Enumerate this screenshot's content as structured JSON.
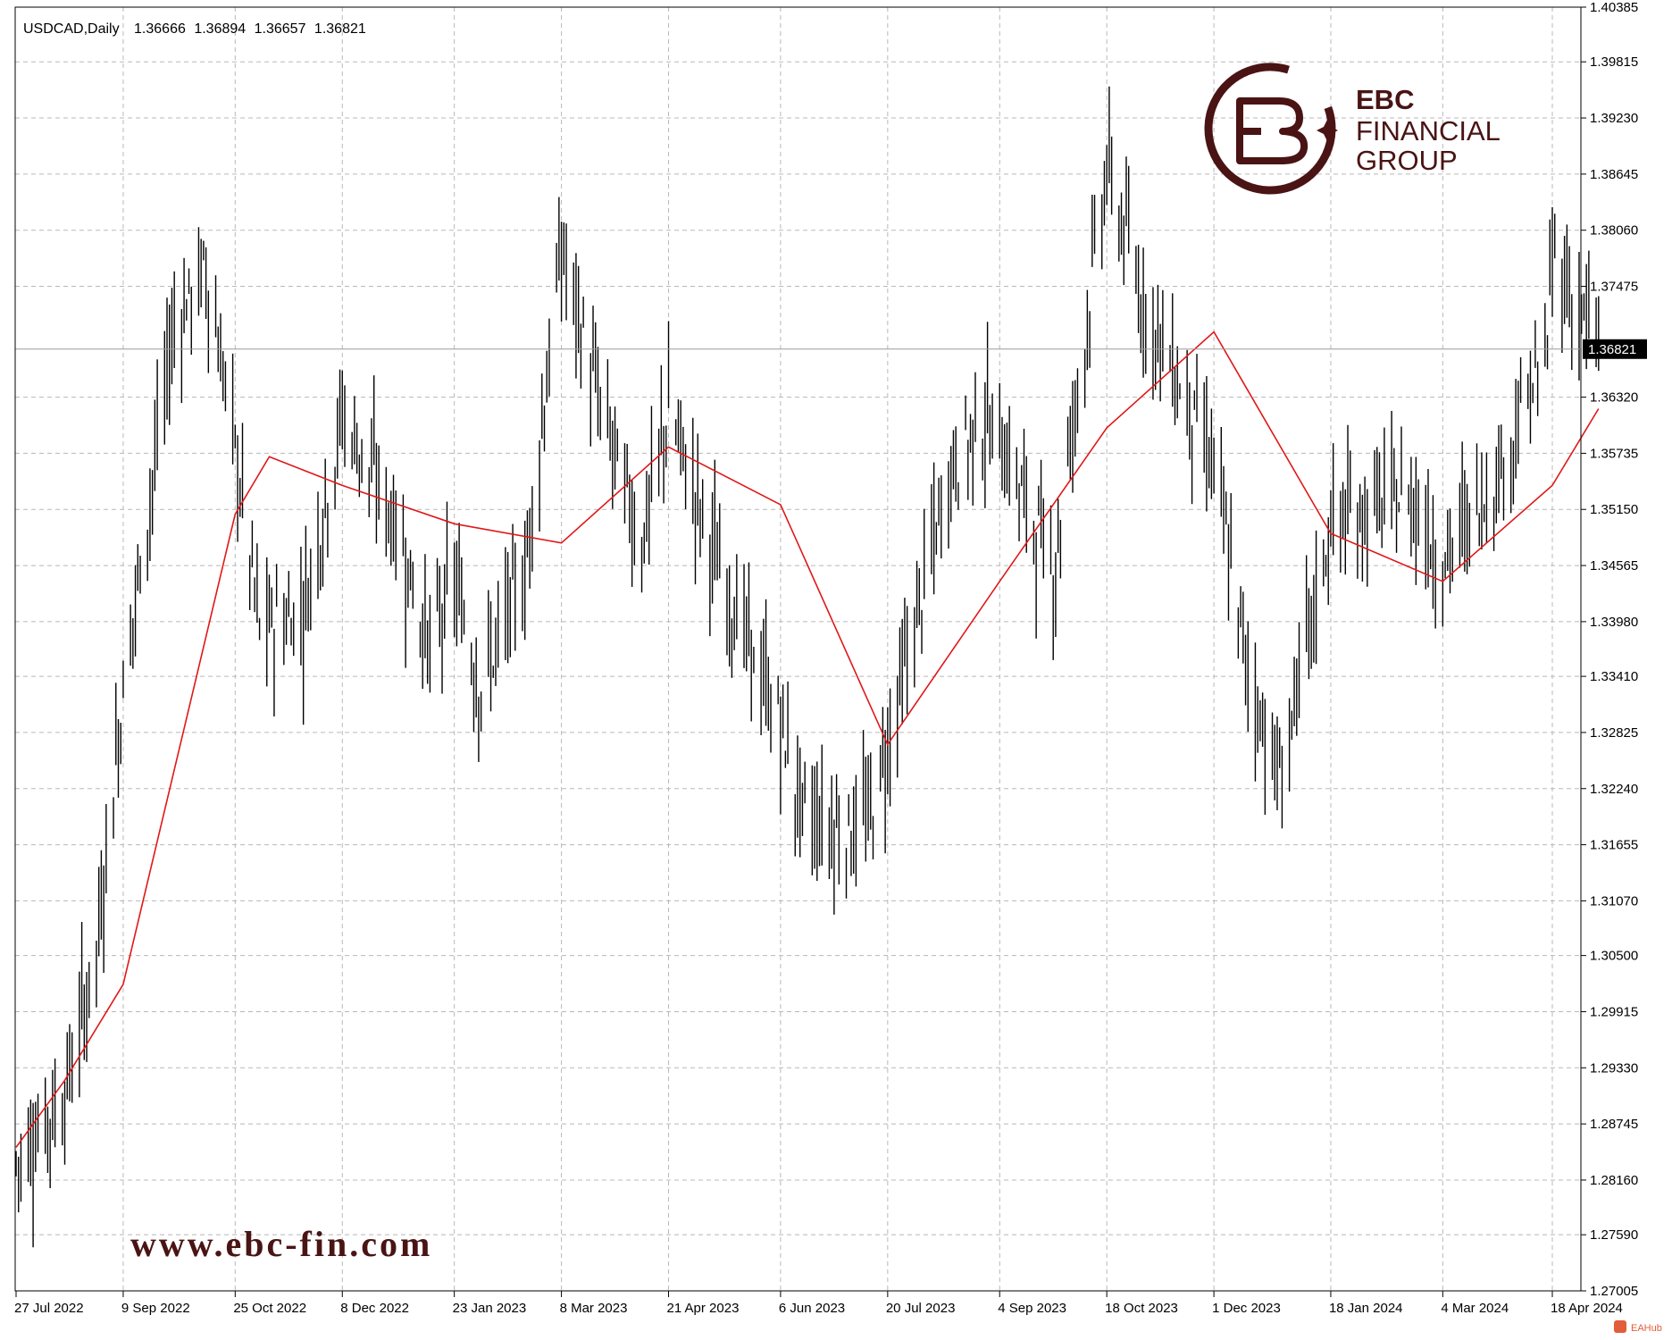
{
  "chart_data": {
    "type": "line",
    "symbol": "USDCAD",
    "timeframe": "Daily",
    "header": {
      "label": "USDCAD,Daily",
      "open": "1.36666",
      "high": "1.36894",
      "low": "1.36657",
      "close": "1.36821"
    },
    "last_price_label": "1.36821",
    "last_price": 1.36821,
    "ylim": [
      1.27005,
      1.40385
    ],
    "y_ticks": [
      "1.40385",
      "1.39815",
      "1.39230",
      "1.38645",
      "1.38060",
      "1.37475",
      "1.36320",
      "1.35735",
      "1.35150",
      "1.34565",
      "1.33980",
      "1.33410",
      "1.32825",
      "1.32240",
      "1.31655",
      "1.31070",
      "1.30500",
      "1.29915",
      "1.29330",
      "1.28745",
      "1.28160",
      "1.27590",
      "1.27005"
    ],
    "x_ticks": [
      "27 Jul 2022",
      "9 Sep 2022",
      "25 Oct 2022",
      "8 Dec 2022",
      "23 Jan 2023",
      "8 Mar 2023",
      "21 Apr 2023",
      "6 Jun 2023",
      "20 Jul 2023",
      "4 Sep 2023",
      "18 Oct 2023",
      "1 Dec 2023",
      "18 Jan 2024",
      "4 Mar 2024",
      "18 Apr 2024"
    ],
    "grid": true,
    "series": [
      {
        "kind": "ohlc-bars",
        "color": "#000000",
        "x": [
          "27 Jul 2022",
          "16 Aug 2022",
          "29 Aug 2022",
          "9 Sep 2022",
          "30 Sep 2022",
          "13 Oct 2022",
          "25 Oct 2022",
          "4 Nov 2022",
          "22 Nov 2022",
          "8 Dec 2022",
          "30 Dec 2022",
          "13 Jan 2023",
          "23 Jan 2023",
          "3 Feb 2023",
          "21 Feb 2023",
          "8 Mar 2023",
          "23 Mar 2023",
          "10 Apr 2023",
          "21 Apr 2023",
          "12 May 2023",
          "6 Jun 2023",
          "15 Jun 2023",
          "30 Jun 2023",
          "12 Jul 2023",
          "20 Jul 2023",
          "15 Aug 2023",
          "29 Aug 2023",
          "4 Sep 2023",
          "26 Sep 2023",
          "18 Oct 2023",
          "1 Nov 2023",
          "1 Dec 2023",
          "14 Dec 2023",
          "28 Dec 2023",
          "18 Jan 2024",
          "20 Feb 2024",
          "4 Mar 2024",
          "28 Mar 2024",
          "16 Apr 2024",
          "18 Apr 2024",
          "7 May 2024"
        ],
        "close": [
          1.2835,
          1.2905,
          1.3055,
          1.333,
          1.371,
          1.3765,
          1.358,
          1.339,
          1.341,
          1.3615,
          1.35,
          1.337,
          1.344,
          1.333,
          1.345,
          1.3785,
          1.363,
          1.348,
          1.362,
          1.345,
          1.329,
          1.32,
          1.318,
          1.319,
          1.327,
          1.356,
          1.361,
          1.359,
          1.345,
          1.387,
          1.374,
          1.356,
          1.336,
          1.323,
          1.35,
          1.353,
          1.346,
          1.356,
          1.368,
          1.378,
          1.3682
        ]
      },
      {
        "kind": "moving-average",
        "color": "#e01818",
        "x": [
          "27 Jul 2022",
          "16 Aug 2022",
          "9 Sep 2022",
          "25 Oct 2022",
          "8 Nov 2022",
          "8 Dec 2022",
          "23 Jan 2023",
          "8 Mar 2023",
          "21 Apr 2023",
          "6 Jun 2023",
          "20 Jul 2023",
          "4 Sep 2023",
          "18 Oct 2023",
          "1 Dec 2023",
          "18 Jan 2024",
          "4 Mar 2024",
          "18 Apr 2024",
          "7 May 2024"
        ],
        "values": [
          1.285,
          1.292,
          1.302,
          1.351,
          1.357,
          1.354,
          1.35,
          1.348,
          1.358,
          1.352,
          1.327,
          1.344,
          1.36,
          1.37,
          1.349,
          1.344,
          1.354,
          1.362
        ]
      }
    ]
  },
  "branding": {
    "logo_line1": "EBC",
    "logo_line2": "FINANCIAL",
    "logo_line3": "GROUP",
    "website": "www.ebc-fin.com",
    "corner_badge": "EAHub",
    "brand_color": "#4a1414"
  }
}
